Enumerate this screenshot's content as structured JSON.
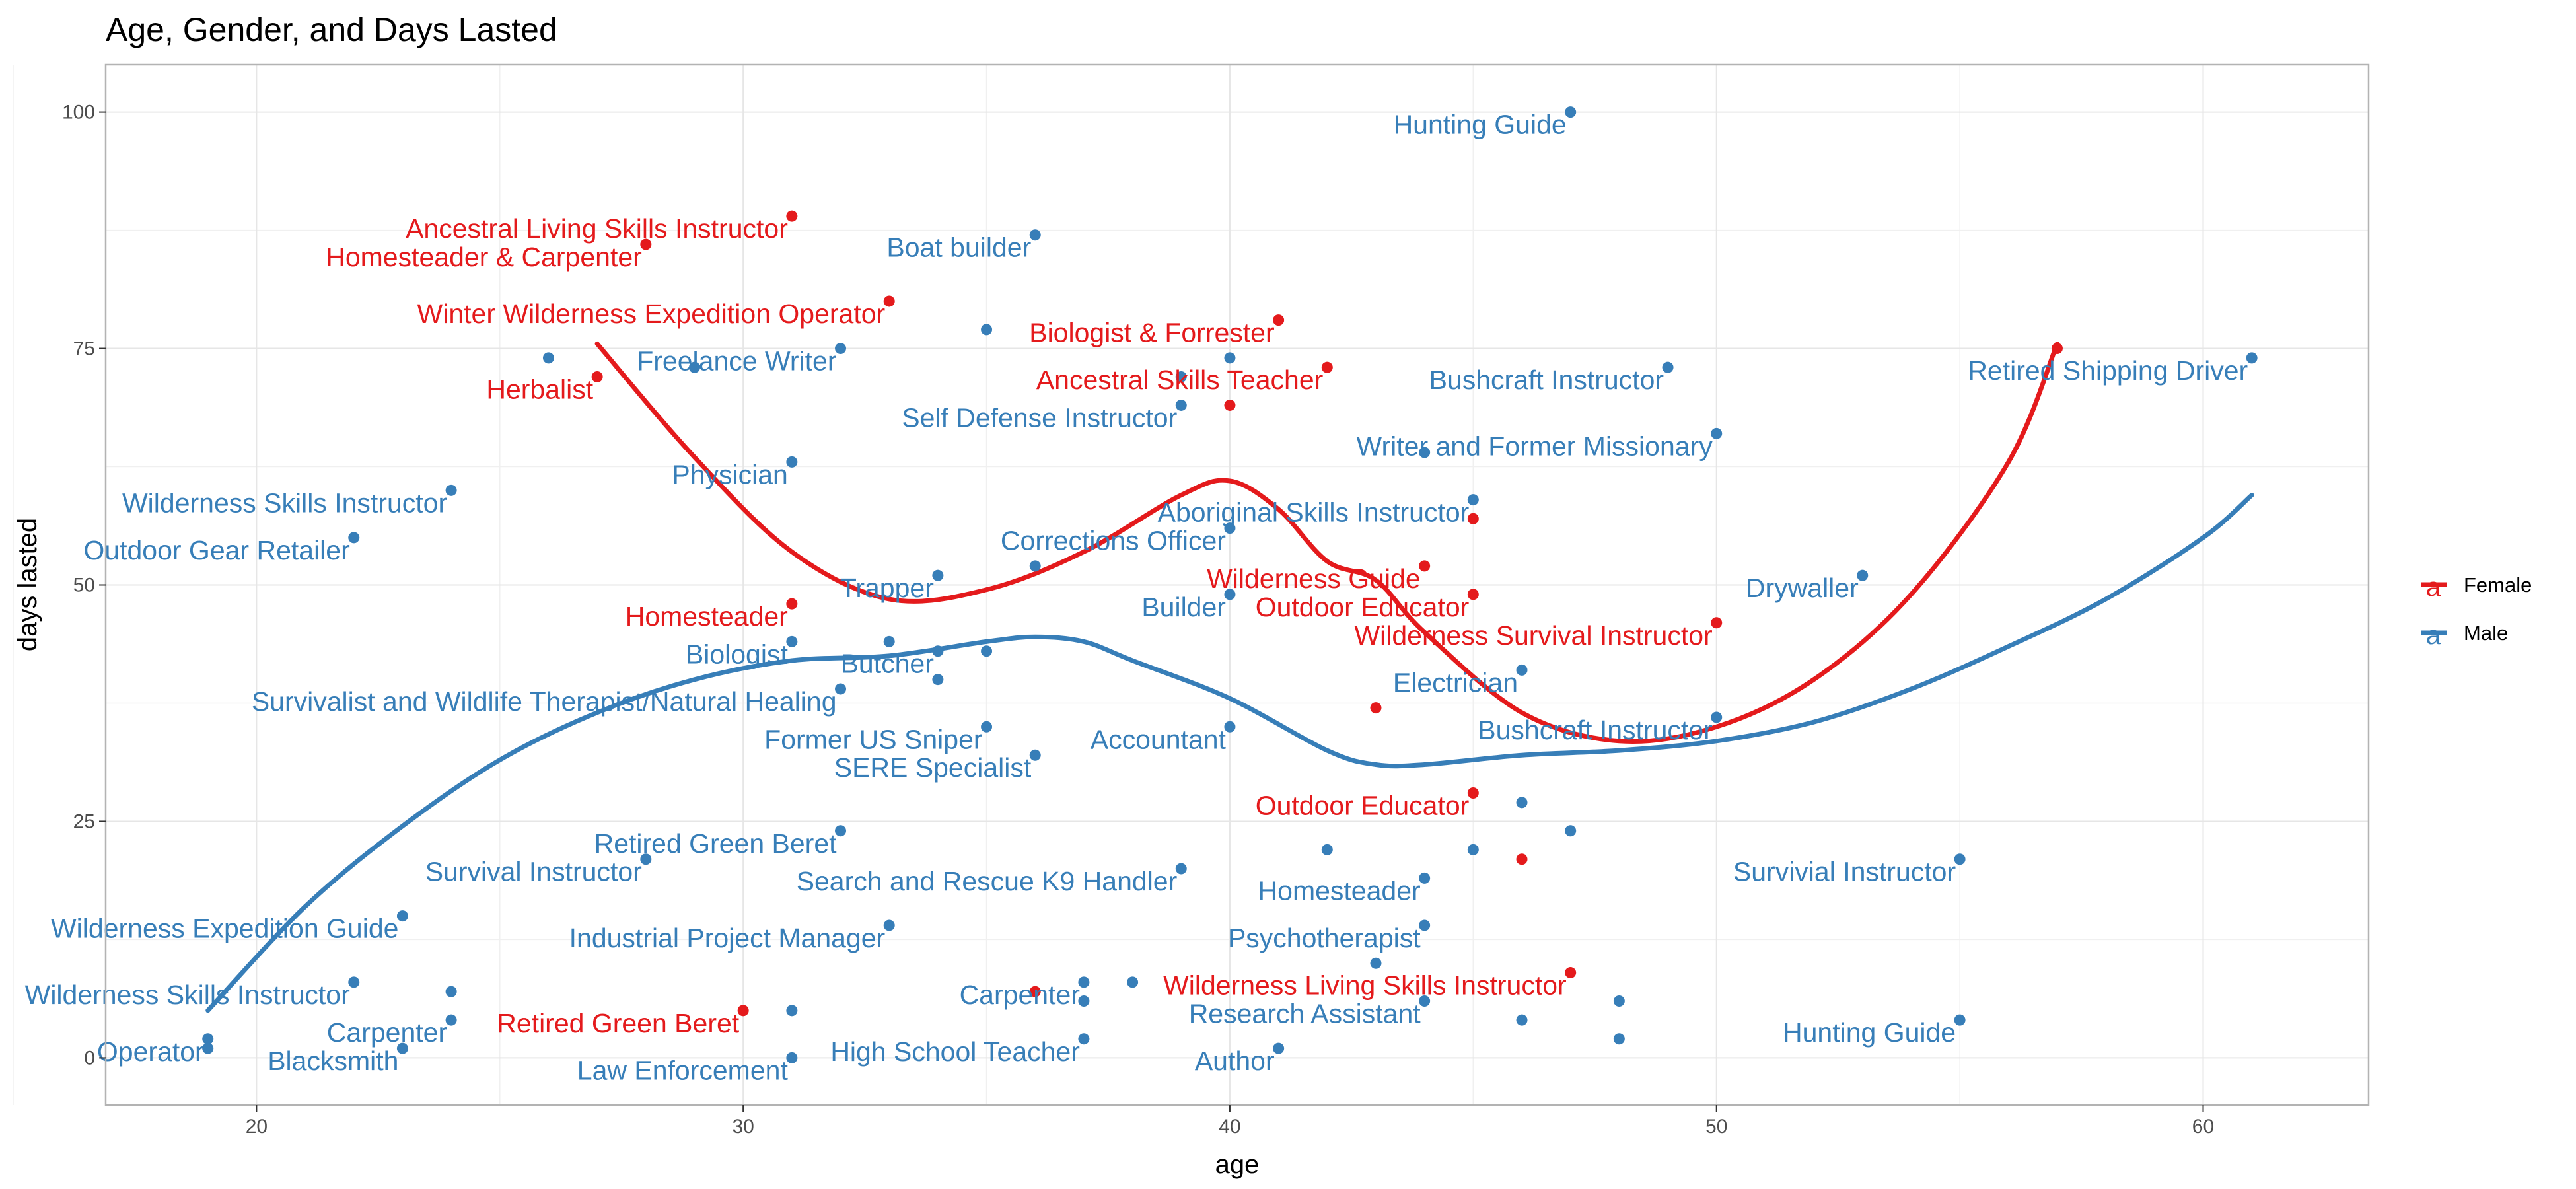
{
  "chart_data": {
    "type": "scatter",
    "title": "Age, Gender, and Days Lasted",
    "xlabel": "age",
    "ylabel": "days lasted",
    "xlim": [
      16.9,
      63.4
    ],
    "ylim": [
      -5.0,
      105.0
    ],
    "x_ticks": [
      "20",
      "30",
      "40",
      "50",
      "60"
    ],
    "y_ticks": [
      "0",
      "25",
      "50",
      "75",
      "100"
    ],
    "grid": true,
    "legend_position": "right",
    "legend": [
      {
        "key": "a",
        "label": "Female",
        "color": "#e41a1c"
      },
      {
        "key": "a",
        "label": "Male",
        "color": "#377eb8"
      }
    ],
    "series": [
      {
        "name": "Female",
        "color": "#e41a1c",
        "points": [
          {
            "x": 31,
            "y": 89,
            "label": "Ancestral Living Skills Instructor"
          },
          {
            "x": 28,
            "y": 86,
            "label": "Homesteader & Carpenter"
          },
          {
            "x": 33,
            "y": 80,
            "label": "Winter Wilderness Expedition Operator"
          },
          {
            "x": 27,
            "y": 72,
            "label": "Herbalist"
          },
          {
            "x": 41,
            "y": 78,
            "label": "Biologist & Forrester"
          },
          {
            "x": 42,
            "y": 73,
            "label": "Ancestral Skills Teacher"
          },
          {
            "x": 40,
            "y": 69,
            "label": ""
          },
          {
            "x": 57,
            "y": 75,
            "label": ""
          },
          {
            "x": 31,
            "y": 48,
            "label": "Homesteader"
          },
          {
            "x": 45,
            "y": 57,
            "label": ""
          },
          {
            "x": 44,
            "y": 52,
            "label": "Wilderness Guide"
          },
          {
            "x": 45,
            "y": 49,
            "label": "Outdoor Educator"
          },
          {
            "x": 50,
            "y": 46,
            "label": "Wilderness Survival Instructor"
          },
          {
            "x": 43,
            "y": 37,
            "label": ""
          },
          {
            "x": 45,
            "y": 28,
            "label": "Outdoor Educator"
          },
          {
            "x": 46,
            "y": 21,
            "label": ""
          },
          {
            "x": 47,
            "y": 9,
            "label": "Wilderness Living Skills Instructor"
          },
          {
            "x": 36,
            "y": 7,
            "label": ""
          },
          {
            "x": 30,
            "y": 5,
            "label": "Retired Green Beret"
          }
        ],
        "smooth": [
          [
            27,
            75.5
          ],
          [
            29,
            63.5
          ],
          [
            31,
            53.5
          ],
          [
            33,
            48.5
          ],
          [
            35,
            49.5
          ],
          [
            37,
            53.5
          ],
          [
            39,
            59.5
          ],
          [
            40,
            61
          ],
          [
            41,
            58
          ],
          [
            42,
            52.5
          ],
          [
            43,
            50.5
          ],
          [
            44,
            45
          ],
          [
            46,
            36.5
          ],
          [
            48,
            33.5
          ],
          [
            50,
            35
          ],
          [
            52,
            40
          ],
          [
            54,
            49
          ],
          [
            56,
            63
          ],
          [
            57,
            75.5
          ]
        ]
      },
      {
        "name": "Male",
        "color": "#377eb8",
        "points": [
          {
            "x": 47,
            "y": 100,
            "label": "Hunting Guide"
          },
          {
            "x": 36,
            "y": 87,
            "label": "Boat builder"
          },
          {
            "x": 32,
            "y": 75,
            "label": "Freelance Writer"
          },
          {
            "x": 49,
            "y": 73,
            "label": "Bushcraft Instructor"
          },
          {
            "x": 61,
            "y": 74,
            "label": "Retired Shipping Driver"
          },
          {
            "x": 39,
            "y": 69,
            "label": "Self Defense Instructor"
          },
          {
            "x": 50,
            "y": 66,
            "label": "Writer and Former Missionary"
          },
          {
            "x": 31,
            "y": 63,
            "label": "Physician"
          },
          {
            "x": 24,
            "y": 60,
            "label": "Wilderness Skills Instructor"
          },
          {
            "x": 22,
            "y": 55,
            "label": "Outdoor Gear Retailer"
          },
          {
            "x": 45,
            "y": 59,
            "label": "Aboriginal Skills Instructor"
          },
          {
            "x": 40,
            "y": 56,
            "label": "Corrections Officer"
          },
          {
            "x": 34,
            "y": 51,
            "label": "Trapper"
          },
          {
            "x": 53,
            "y": 51,
            "label": "Drywaller"
          },
          {
            "x": 40,
            "y": 49,
            "label": "Builder"
          },
          {
            "x": 31,
            "y": 44,
            "label": "Biologist"
          },
          {
            "x": 34,
            "y": 43,
            "label": "Butcher"
          },
          {
            "x": 32,
            "y": 39,
            "label": "Survivalist and Wildlife Therapist/Natural Healing"
          },
          {
            "x": 46,
            "y": 41,
            "label": "Electrician"
          },
          {
            "x": 50,
            "y": 36,
            "label": "Bushcraft Instructor"
          },
          {
            "x": 35,
            "y": 35,
            "label": "Former US Sniper"
          },
          {
            "x": 40,
            "y": 35,
            "label": "Accountant"
          },
          {
            "x": 36,
            "y": 32,
            "label": "SERE Specialist"
          },
          {
            "x": 32,
            "y": 24,
            "label": "Retired Green Beret"
          },
          {
            "x": 28,
            "y": 21,
            "label": "Survival Instructor"
          },
          {
            "x": 44,
            "y": 19,
            "label": "Homesteader"
          },
          {
            "x": 39,
            "y": 20,
            "label": "Search and Rescue K9 Handler"
          },
          {
            "x": 55,
            "y": 21,
            "label": "Survivial Instructor"
          },
          {
            "x": 23,
            "y": 15,
            "label": "Wilderness Expedition Guide"
          },
          {
            "x": 33,
            "y": 14,
            "label": "Industrial Project Manager"
          },
          {
            "x": 44,
            "y": 14,
            "label": "Psychotherapist"
          },
          {
            "x": 22,
            "y": 8,
            "label": "Wilderness Skills Instructor"
          },
          {
            "x": 37,
            "y": 8,
            "label": "Carpenter"
          },
          {
            "x": 24,
            "y": 4,
            "label": "Carpenter"
          },
          {
            "x": 19,
            "y": 2,
            "label": "Operator"
          },
          {
            "x": 23,
            "y": 1,
            "label": "Blacksmith"
          },
          {
            "x": 31,
            "y": 0,
            "label": "Law Enforcement"
          },
          {
            "x": 37,
            "y": 2,
            "label": "High School Teacher"
          },
          {
            "x": 44,
            "y": 6,
            "label": "Research Assistant"
          },
          {
            "x": 41,
            "y": 1,
            "label": "Author"
          },
          {
            "x": 55,
            "y": 4,
            "label": "Hunting Guide"
          },
          {
            "x": 26,
            "y": 74,
            "label": ""
          },
          {
            "x": 29,
            "y": 73,
            "label": ""
          },
          {
            "x": 35,
            "y": 77,
            "label": ""
          },
          {
            "x": 39,
            "y": 72,
            "label": ""
          },
          {
            "x": 40,
            "y": 74,
            "label": ""
          },
          {
            "x": 44,
            "y": 64,
            "label": ""
          },
          {
            "x": 36,
            "y": 52,
            "label": ""
          },
          {
            "x": 35,
            "y": 43,
            "label": ""
          },
          {
            "x": 33,
            "y": 44,
            "label": ""
          },
          {
            "x": 34,
            "y": 40,
            "label": ""
          },
          {
            "x": 45,
            "y": 22,
            "label": ""
          },
          {
            "x": 42,
            "y": 22,
            "label": ""
          },
          {
            "x": 46,
            "y": 27,
            "label": ""
          },
          {
            "x": 47,
            "y": 24,
            "label": ""
          },
          {
            "x": 43,
            "y": 10,
            "label": ""
          },
          {
            "x": 48,
            "y": 6,
            "label": ""
          },
          {
            "x": 48,
            "y": 2,
            "label": ""
          },
          {
            "x": 46,
            "y": 4,
            "label": ""
          },
          {
            "x": 31,
            "y": 5,
            "label": ""
          },
          {
            "x": 38,
            "y": 8,
            "label": ""
          },
          {
            "x": 37,
            "y": 6,
            "label": ""
          },
          {
            "x": 19,
            "y": 1,
            "label": ""
          },
          {
            "x": 24,
            "y": 7,
            "label": ""
          }
        ],
        "smooth": [
          [
            19,
            5
          ],
          [
            21,
            16
          ],
          [
            23,
            24.5
          ],
          [
            25,
            31.5
          ],
          [
            27,
            36.5
          ],
          [
            29,
            40
          ],
          [
            31,
            42
          ],
          [
            33,
            42.5
          ],
          [
            35,
            44
          ],
          [
            36,
            44.5
          ],
          [
            37,
            44
          ],
          [
            38,
            42
          ],
          [
            40,
            38
          ],
          [
            42,
            32.5
          ],
          [
            43,
            31
          ],
          [
            44,
            31
          ],
          [
            46,
            32
          ],
          [
            48,
            32.5
          ],
          [
            50,
            33.5
          ],
          [
            52,
            35.5
          ],
          [
            54,
            39
          ],
          [
            56,
            43.5
          ],
          [
            58,
            48.5
          ],
          [
            60,
            55
          ],
          [
            61,
            59.5
          ]
        ]
      }
    ]
  }
}
